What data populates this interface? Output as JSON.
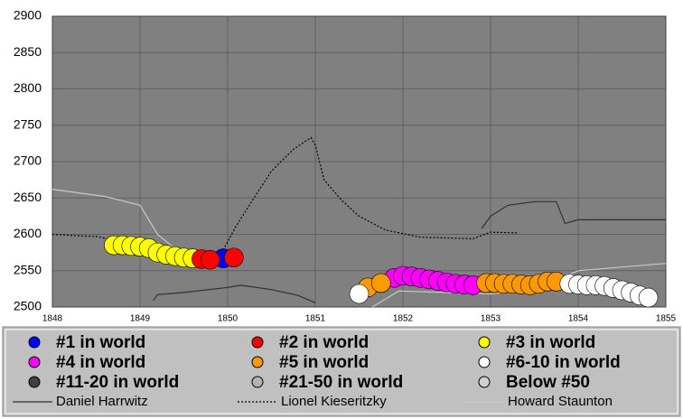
{
  "chart_data": {
    "type": "line",
    "xlim": [
      1848,
      1855
    ],
    "ylim": [
      2500,
      2900
    ],
    "xticks": [
      1848,
      1849,
      1850,
      1851,
      1852,
      1853,
      1854,
      1855
    ],
    "yticks": [
      2500,
      2550,
      2600,
      2650,
      2700,
      2750,
      2800,
      2850,
      2900
    ],
    "grid": true,
    "plot_color": "#808080",
    "series": [
      {
        "name": "Daniel Harrwitz",
        "color": "#303030",
        "style": "solid",
        "x": [
          1849.15,
          1849.2,
          1849.5,
          1850.0,
          1850.15,
          1850.5,
          1850.8,
          1851.0,
          null,
          1852.9,
          1853.0,
          1853.2,
          1853.5,
          1853.75,
          1853.85,
          1854.0,
          1854.5,
          1855.0
        ],
        "values": [
          2509,
          2517,
          2520,
          2527,
          2530,
          2524,
          2516,
          2506,
          null,
          2608,
          2625,
          2640,
          2645,
          2645,
          2615,
          2620,
          2620,
          2620
        ]
      },
      {
        "name": "Lionel Kieseritzky",
        "color": "#000000",
        "style": "dotted",
        "x": [
          1848.0,
          1848.3,
          1848.5,
          1849.0,
          1849.5,
          1849.9,
          1850.1,
          1850.3,
          1850.5,
          1850.75,
          1850.95,
          1851.0,
          1851.1,
          1851.3,
          1851.5,
          1851.8,
          1852.2,
          1852.8,
          1853.0,
          1853.3
        ],
        "values": [
          2600,
          2598,
          2597,
          2585,
          2575,
          2568,
          2612,
          2650,
          2687,
          2717,
          2733,
          2723,
          2675,
          2647,
          2625,
          2606,
          2596,
          2594,
          2603,
          2602
        ]
      },
      {
        "name": "Howard Staunton",
        "color": "#c8c8c8",
        "style": "solid",
        "x": [
          1848.0,
          1848.6,
          1849.0,
          1849.1,
          1849.2,
          1849.4,
          1849.6,
          1850.0,
          null,
          1851.65,
          1851.95,
          1852.5,
          1853.0,
          1853.5,
          1853.8,
          1854.0,
          1854.5,
          1855.0
        ],
        "values": [
          2662,
          2652,
          2640,
          2620,
          2600,
          2580,
          2570,
          2560,
          null,
          2500,
          2522,
          2520,
          2518,
          2525,
          2540,
          2550,
          2555,
          2560
        ]
      }
    ],
    "markers": [
      {
        "name": "#3 in world",
        "color": "#ffff00",
        "x": [
          1848.7,
          1848.8,
          1848.9,
          1849.0,
          1849.1,
          1849.2,
          1849.3,
          1849.4,
          1849.5,
          1849.6
        ],
        "values": [
          2585,
          2585,
          2584,
          2583,
          2581,
          2575,
          2572,
          2570,
          2568,
          2567
        ]
      },
      {
        "name": "#1 in world",
        "color": "#0000ff",
        "x": [
          1849.95
        ],
        "values": [
          2567
        ]
      },
      {
        "name": "#2 in world",
        "color": "#ff0000",
        "x": [
          1849.7,
          1849.8,
          1850.07
        ],
        "values": [
          2566,
          2565,
          2568
        ]
      },
      {
        "name": "#4 in world",
        "color": "#ff00ff",
        "x": [
          1851.9,
          1852.0,
          1852.1,
          1852.2,
          1852.3,
          1852.4,
          1852.5,
          1852.6,
          1852.7,
          1852.8
        ],
        "values": [
          2540,
          2543,
          2542,
          2540,
          2538,
          2536,
          2534,
          2532,
          2531,
          2530
        ]
      },
      {
        "name": "#5 in world",
        "color": "#ff9900",
        "x": [
          1851.6,
          1851.75,
          1852.95,
          1853.05,
          1853.15,
          1853.25,
          1853.35,
          1853.45,
          1853.55,
          1853.65,
          1853.75
        ],
        "values": [
          2527,
          2533,
          2533,
          2533,
          2532,
          2532,
          2531,
          2530,
          2532,
          2535,
          2535
        ]
      },
      {
        "name": "#6-10 in world",
        "color": "#ffffff",
        "x": [
          1851.5,
          1853.9,
          1854.0,
          1854.1,
          1854.2,
          1854.3,
          1854.4,
          1854.5,
          1854.6,
          1854.7,
          1854.8
        ],
        "values": [
          2518,
          2532,
          2531,
          2530,
          2530,
          2529,
          2526,
          2523,
          2520,
          2516,
          2513
        ]
      },
      {
        "name": "#11-20 in world",
        "color": "#404040",
        "x": [],
        "values": []
      },
      {
        "name": "#21-50 in world",
        "color": "#b4b4b4",
        "x": [],
        "values": []
      },
      {
        "name": "Below #50",
        "color": "#d0d0d0",
        "x": [],
        "values": []
      }
    ],
    "legend_order": [
      1,
      2,
      0,
      3,
      4,
      5,
      6,
      7,
      8
    ]
  }
}
